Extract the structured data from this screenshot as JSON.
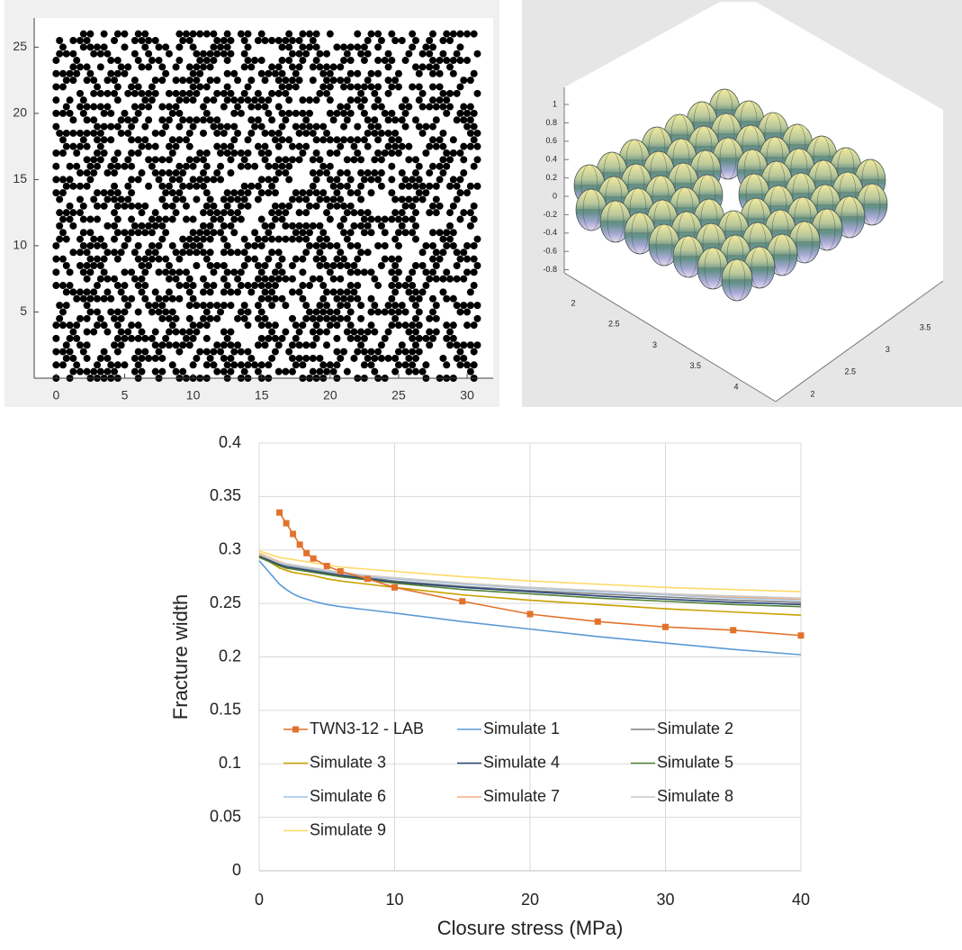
{
  "chart_data": [
    {
      "type": "dot-grid",
      "xlim": [
        -1.6,
        31.9
      ],
      "ylim": [
        0,
        27.2
      ],
      "xticks": [
        0,
        5,
        10,
        15,
        20,
        25,
        30
      ],
      "yticks": [
        5,
        10,
        15,
        20,
        25
      ],
      "color": "#000000",
      "rows": [
        "a7c93e5b0f4d82e6",
        "3f9b61d4e7a25c08",
        "d2e84b7f19c63a5e",
        "6b1f0ac93e57d8b2",
        "e94d27b8a06f3c15",
        "58c3f1e6bd092a7f",
        "b07e9a43d25c8f61",
        "2d6af8c1573e9b40",
        "f3584e0b9ad27c6e",
        "9ac1d7362fe84b05",
        "46ebc29a07d3f518",
        "c8271fd54b6ae93d",
        "1fb5e803c97a4d62",
        "7d4a96eb31f05c8a",
        "e26c3b5f8d197a04",
        "0b98d4a7e6c253f1",
        "ad35f172c89e6b4d",
        "5e0c8b96a3f14d27",
        "c74fa20d5b68e19e",
        "39d67ef18a4c05b2",
        "8f2b5c4e07d9a36c",
        "d6a13e97fb2048c5",
        "4c7e8fa51d36b9e0",
        "a19f06c37e5d284b",
        "6e53d9b2c0a7f814",
        "f08a47e1d93c6b5a",
        "2b7cd358e6f019a4",
        "95e16af43bc87d20",
        "c3d0e27b9f5a4618",
        "78a5bc1d04e93f6e",
        "e4196f83a2d75cb0",
        "1d8be540c76f2a93",
        "b6f23a9de18045c7",
        "0ea79c52f63b18d4",
        "d35846fb0ac9e271",
        "7a0ed1c6b854f39e",
        "4b9c7028e3fd61a5",
        "fe6315ab9d07c48e",
        "83d4a9e65f2b170c",
        "2c75bf0d48a6e93b",
        "e9a862317cf4d05f",
        "5f1dc4ae806b37d9",
        "a8463b7f2e9d15c0",
        "17bef9d5c30a84e6",
        "c25a0e4871bf6d93",
        "6d937b2af5e4c018",
        "f4e08c63d19b25a7",
        "3a6d5e19b7c08f42",
        "90cb274e6a35d1f8",
        "e7148fd03b2c96a5",
        "4f25a9c86e7d0b13",
        "b89e31d7f4056ac2",
        "0d6c3f5a2e8b497e"
      ]
    },
    {
      "type": "surface",
      "zticks": [
        1,
        0.8,
        0.6,
        0.4,
        0.2,
        0,
        -0.2,
        -0.4,
        -0.6,
        -0.8
      ],
      "xticks": [
        2,
        2.5,
        3,
        3.5,
        4
      ],
      "yticks": [
        2,
        2.5,
        3,
        3.5
      ]
    },
    {
      "type": "line",
      "xlabel": "Closure stress (MPa)",
      "ylabel": "Fracture width",
      "xlim": [
        0,
        40
      ],
      "ylim": [
        0,
        0.4
      ],
      "xticks": [
        0,
        10,
        20,
        30,
        40
      ],
      "yticks": [
        0,
        0.05,
        0.1,
        0.15,
        0.2,
        0.25,
        0.3,
        0.35,
        0.4
      ],
      "grid": true,
      "legend": "lower left",
      "x": [
        0,
        1.5,
        2,
        2.5,
        3,
        3.5,
        4,
        5,
        6,
        8,
        10,
        15,
        20,
        25,
        30,
        35,
        40
      ],
      "series": [
        {
          "name": "TWN3-12 - LAB",
          "color": "#e2712c",
          "marker": "square",
          "values": [
            null,
            0.335,
            0.325,
            0.315,
            0.305,
            0.297,
            0.292,
            0.285,
            0.28,
            0.273,
            0.265,
            0.252,
            0.24,
            0.233,
            0.228,
            0.225,
            0.22
          ]
        },
        {
          "name": "Simulate 1",
          "color": "#5b9bd5",
          "values": [
            0.29,
            0.268,
            0.263,
            0.259,
            0.256,
            0.254,
            0.252,
            0.249,
            0.247,
            0.244,
            0.241,
            0.233,
            0.226,
            0.219,
            0.213,
            0.207,
            0.202
          ]
        },
        {
          "name": "Simulate 2",
          "color": "#7f7f7f",
          "values": [
            0.295,
            0.287,
            0.285,
            0.284,
            0.283,
            0.282,
            0.281,
            0.279,
            0.277,
            0.274,
            0.271,
            0.266,
            0.262,
            0.259,
            0.256,
            0.253,
            0.251
          ]
        },
        {
          "name": "Simulate 3",
          "color": "#c9a100",
          "values": [
            0.295,
            0.283,
            0.281,
            0.279,
            0.278,
            0.277,
            0.276,
            0.273,
            0.271,
            0.268,
            0.265,
            0.258,
            0.253,
            0.249,
            0.245,
            0.242,
            0.239
          ]
        },
        {
          "name": "Simulate 4",
          "color": "#264478",
          "values": [
            0.294,
            0.286,
            0.284,
            0.283,
            0.282,
            0.281,
            0.28,
            0.278,
            0.276,
            0.273,
            0.27,
            0.265,
            0.261,
            0.257,
            0.254,
            0.251,
            0.249
          ]
        },
        {
          "name": "Simulate 5",
          "color": "#548235",
          "values": [
            0.293,
            0.285,
            0.283,
            0.282,
            0.281,
            0.28,
            0.279,
            0.277,
            0.275,
            0.272,
            0.269,
            0.263,
            0.259,
            0.255,
            0.252,
            0.249,
            0.247
          ]
        },
        {
          "name": "Simulate 6",
          "color": "#9dc3e6",
          "values": [
            0.296,
            0.288,
            0.286,
            0.285,
            0.284,
            0.283,
            0.282,
            0.28,
            0.278,
            0.275,
            0.273,
            0.268,
            0.264,
            0.261,
            0.258,
            0.255,
            0.253
          ]
        },
        {
          "name": "Simulate 7",
          "color": "#f4b183",
          "values": [
            0.297,
            0.289,
            0.287,
            0.286,
            0.285,
            0.284,
            0.283,
            0.281,
            0.279,
            0.276,
            0.274,
            0.269,
            0.265,
            0.262,
            0.259,
            0.256,
            0.254
          ]
        },
        {
          "name": "Simulate 8",
          "color": "#c9c9c9",
          "values": [
            0.296,
            0.288,
            0.287,
            0.286,
            0.285,
            0.284,
            0.283,
            0.281,
            0.279,
            0.276,
            0.274,
            0.269,
            0.265,
            0.262,
            0.259,
            0.257,
            0.255
          ]
        },
        {
          "name": "Simulate 9",
          "color": "#ffd966",
          "values": [
            0.299,
            0.293,
            0.292,
            0.291,
            0.29,
            0.289,
            0.288,
            0.286,
            0.284,
            0.282,
            0.28,
            0.275,
            0.271,
            0.268,
            0.265,
            0.263,
            0.261
          ]
        }
      ]
    }
  ]
}
